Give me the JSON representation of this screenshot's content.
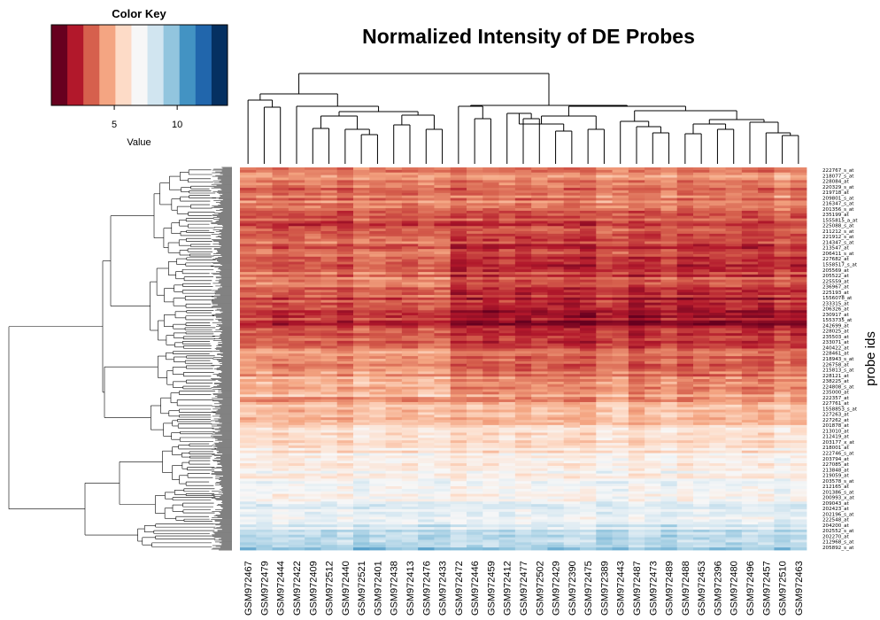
{
  "chart_data": {
    "type": "heatmap",
    "title": "Normalized Intensity of DE Probes",
    "ylabel": "probe ids",
    "xlabel": "",
    "color_key": {
      "title": "Color Key",
      "xlabel": "Value",
      "ticks": [
        5,
        10
      ],
      "range": [
        0,
        14
      ],
      "colors": [
        "#67001f",
        "#b2182b",
        "#d6604d",
        "#f4a582",
        "#fddbc7",
        "#f7f7f7",
        "#d1e5f0",
        "#92c5de",
        "#4393c3",
        "#2166ac",
        "#053061"
      ]
    },
    "samples": [
      "GSM972467",
      "GSM972479",
      "GSM972444",
      "GSM972422",
      "GSM972409",
      "GSM972512",
      "GSM972440",
      "GSM972521",
      "GSM972401",
      "GSM972438",
      "GSM972413",
      "GSM972476",
      "GSM972433",
      "GSM972472",
      "GSM972446",
      "GSM972459",
      "GSM972412",
      "GSM972477",
      "GSM972502",
      "GSM972429",
      "GSM972390",
      "GSM972475",
      "GSM972389",
      "GSM972443",
      "GSM972487",
      "GSM972473",
      "GSM972489",
      "GSM972488",
      "GSM972453",
      "GSM972396",
      "GSM972480",
      "GSM972496",
      "GSM972457",
      "GSM972510",
      "GSM972463"
    ],
    "probe_labels": [
      "222767_s_at",
      "218077_s_at",
      "228084_at",
      "220329_s_at",
      "219718_at",
      "209801_s_at",
      "216347_s_at",
      "201356_s_at",
      "235199_at",
      "1555815_a_at",
      "225088_s_at",
      "211212_s_at",
      "221912_s_at",
      "214347_s_at",
      "213547_at",
      "206411_s_at",
      "227682_at",
      "1558517_s_at",
      "205569_at",
      "205522_at",
      "225559_at",
      "236967_at",
      "225193_at",
      "1556078_at",
      "233315_at",
      "206326_at",
      "230917_at",
      "1553735_at",
      "242699_at",
      "228025_at",
      "235503_at",
      "233071_at",
      "240422_at",
      "228461_at",
      "218943_s_at",
      "226758_at",
      "215813_s_at",
      "228121_at",
      "238225_at",
      "224808_s_at",
      "235000_at",
      "222357_at",
      "227761_at",
      "1558853_s_at",
      "227263_at",
      "227262_at",
      "201878_at",
      "213010_at",
      "212419_at",
      "203177_x_at",
      "218001_at",
      "222746_s_at",
      "203794_at",
      "227085_at",
      "213848_at",
      "219059_at",
      "203578_s_at",
      "212165_at",
      "201386_s_at",
      "200993_x_at",
      "209043_at",
      "202423_at",
      "202196_s_at",
      "222548_at",
      "204200_at",
      "202552_s_at",
      "202270_at",
      "212968_s_at",
      "205892_s_at"
    ],
    "intensity_profile": [
      {
        "row_band": 0.0,
        "level": 4.0
      },
      {
        "row_band": 0.04,
        "level": 3.6
      },
      {
        "row_band": 0.08,
        "level": 3.8
      },
      {
        "row_band": 0.13,
        "level": 2.9
      },
      {
        "row_band": 0.18,
        "level": 2.6
      },
      {
        "row_band": 0.24,
        "level": 2.2
      },
      {
        "row_band": 0.3,
        "level": 2.9
      },
      {
        "row_band": 0.35,
        "level": 1.8
      },
      {
        "row_band": 0.41,
        "level": 1.3
      },
      {
        "row_band": 0.45,
        "level": 2.6
      },
      {
        "row_band": 0.52,
        "level": 3.3
      },
      {
        "row_band": 0.58,
        "level": 3.9
      },
      {
        "row_band": 0.64,
        "level": 5.0
      },
      {
        "row_band": 0.71,
        "level": 6.0
      },
      {
        "row_band": 0.78,
        "level": 6.6
      },
      {
        "row_band": 0.85,
        "level": 7.2
      },
      {
        "row_band": 0.92,
        "level": 7.7
      },
      {
        "row_band": 0.96,
        "level": 8.5
      },
      {
        "row_band": 1.0,
        "level": 9.2
      }
    ],
    "dendrogram": {
      "rows": "left",
      "columns": "top"
    }
  }
}
